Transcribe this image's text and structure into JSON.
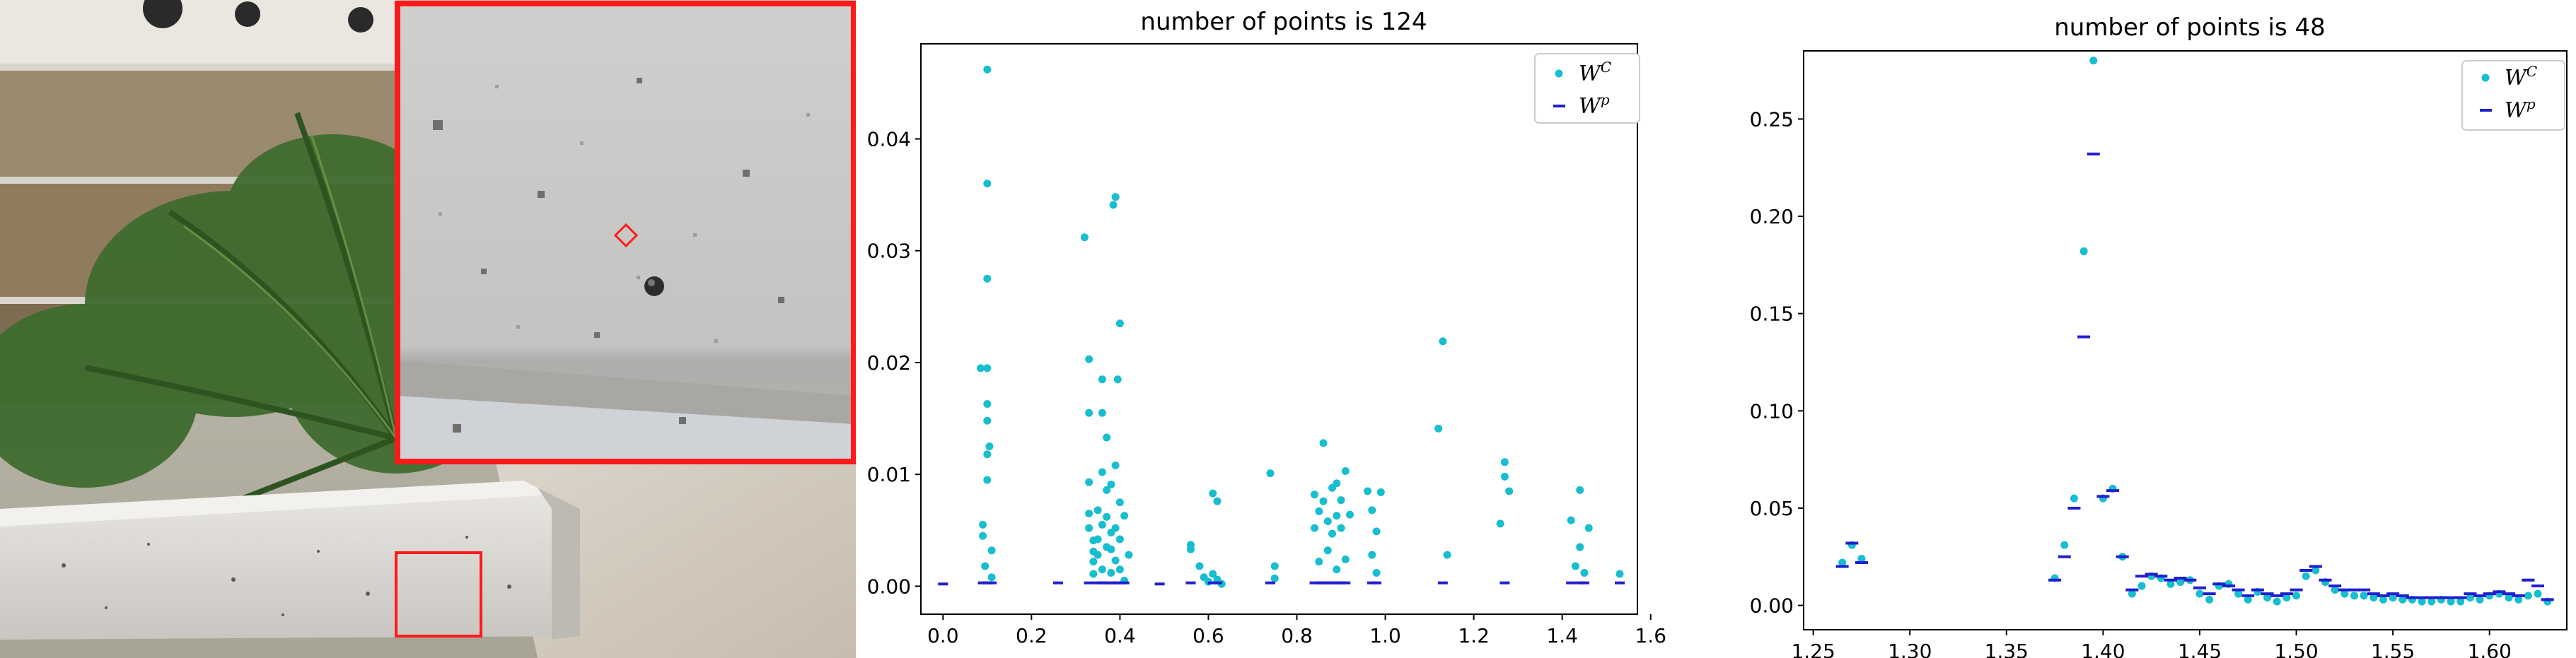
{
  "chart_data": [
    {
      "type": "scatter",
      "title": "number of points is 124",
      "xlim": [
        -0.05,
        1.57
      ],
      "ylim": [
        -0.0025,
        0.0485
      ],
      "xticks": [
        0.0,
        0.2,
        0.4,
        0.6,
        0.8,
        1.0,
        1.2,
        1.4,
        1.6
      ],
      "xtick_labels": [
        "0.0",
        "0.2",
        "0.4",
        "0.6",
        "0.8",
        "1.0",
        "1.2",
        "1.4",
        "1.6"
      ],
      "yticks": [
        0.0,
        0.01,
        0.02,
        0.03,
        0.04
      ],
      "ytick_labels": [
        "0.00",
        "0.01",
        "0.02",
        "0.03",
        "0.04"
      ],
      "legend_position": "top-right",
      "grid": false,
      "series": [
        {
          "name": "W^C",
          "marker": "dot",
          "color": "#17becf",
          "points": [
            [
              0.085,
              0.0195
            ],
            [
              0.09,
              0.0055
            ],
            [
              0.09,
              0.0045
            ],
            [
              0.095,
              0.0018
            ],
            [
              0.1,
              0.0462
            ],
            [
              0.1,
              0.036
            ],
            [
              0.1,
              0.0275
            ],
            [
              0.1,
              0.0195
            ],
            [
              0.1,
              0.0163
            ],
            [
              0.1,
              0.0148
            ],
            [
              0.1,
              0.0118
            ],
            [
              0.1,
              0.0095
            ],
            [
              0.105,
              0.0125
            ],
            [
              0.11,
              0.0032
            ],
            [
              0.11,
              0.0008
            ],
            [
              0.32,
              0.0312
            ],
            [
              0.33,
              0.0203
            ],
            [
              0.33,
              0.0155
            ],
            [
              0.33,
              0.0093
            ],
            [
              0.33,
              0.0065
            ],
            [
              0.33,
              0.0052
            ],
            [
              0.34,
              0.0041
            ],
            [
              0.34,
              0.0031
            ],
            [
              0.34,
              0.0022
            ],
            [
              0.34,
              0.0011
            ],
            [
              0.35,
              0.0068
            ],
            [
              0.35,
              0.0042
            ],
            [
              0.35,
              0.0028
            ],
            [
              0.36,
              0.0185
            ],
            [
              0.36,
              0.0155
            ],
            [
              0.36,
              0.0102
            ],
            [
              0.36,
              0.0055
            ],
            [
              0.36,
              0.0015
            ],
            [
              0.37,
              0.0133
            ],
            [
              0.37,
              0.0086
            ],
            [
              0.37,
              0.0062
            ],
            [
              0.37,
              0.0035
            ],
            [
              0.38,
              0.0091
            ],
            [
              0.38,
              0.0048
            ],
            [
              0.38,
              0.0033
            ],
            [
              0.38,
              0.0012
            ],
            [
              0.385,
              0.0341
            ],
            [
              0.39,
              0.0348
            ],
            [
              0.39,
              0.0108
            ],
            [
              0.39,
              0.0052
            ],
            [
              0.39,
              0.0023
            ],
            [
              0.395,
              0.0185
            ],
            [
              0.4,
              0.0235
            ],
            [
              0.4,
              0.0075
            ],
            [
              0.4,
              0.0042
            ],
            [
              0.4,
              0.0015
            ],
            [
              0.41,
              0.0063
            ],
            [
              0.41,
              0.0005
            ],
            [
              0.42,
              0.0028
            ],
            [
              0.56,
              0.0033
            ],
            [
              0.56,
              0.0037
            ],
            [
              0.58,
              0.0018
            ],
            [
              0.59,
              0.0008
            ],
            [
              0.6,
              0.0004
            ],
            [
              0.61,
              0.0083
            ],
            [
              0.61,
              0.0011
            ],
            [
              0.62,
              0.0076
            ],
            [
              0.62,
              0.0006
            ],
            [
              0.63,
              0.0002
            ],
            [
              0.74,
              0.0101
            ],
            [
              0.75,
              0.0018
            ],
            [
              0.75,
              0.0007
            ],
            [
              0.84,
              0.0082
            ],
            [
              0.84,
              0.0052
            ],
            [
              0.85,
              0.0067
            ],
            [
              0.85,
              0.0022
            ],
            [
              0.86,
              0.0128
            ],
            [
              0.86,
              0.0076
            ],
            [
              0.87,
              0.0058
            ],
            [
              0.87,
              0.0032
            ],
            [
              0.88,
              0.0088
            ],
            [
              0.88,
              0.0047
            ],
            [
              0.89,
              0.0092
            ],
            [
              0.89,
              0.0063
            ],
            [
              0.89,
              0.0015
            ],
            [
              0.9,
              0.0077
            ],
            [
              0.9,
              0.0052
            ],
            [
              0.91,
              0.0103
            ],
            [
              0.91,
              0.0024
            ],
            [
              0.92,
              0.0064
            ],
            [
              0.96,
              0.0085
            ],
            [
              0.97,
              0.0068
            ],
            [
              0.97,
              0.0028
            ],
            [
              0.98,
              0.0049
            ],
            [
              0.98,
              0.0012
            ],
            [
              0.99,
              0.0084
            ],
            [
              1.12,
              0.0141
            ],
            [
              1.13,
              0.0219
            ],
            [
              1.14,
              0.0028
            ],
            [
              1.26,
              0.0056
            ],
            [
              1.27,
              0.0111
            ],
            [
              1.27,
              0.0098
            ],
            [
              1.28,
              0.0085
            ],
            [
              1.42,
              0.0059
            ],
            [
              1.43,
              0.0018
            ],
            [
              1.44,
              0.0086
            ],
            [
              1.44,
              0.0035
            ],
            [
              1.45,
              0.0012
            ],
            [
              1.46,
              0.0052
            ],
            [
              1.53,
              0.0011
            ]
          ]
        },
        {
          "name": "W^p",
          "marker": "hline",
          "color": "#1f1fcf",
          "points": [
            [
              0.0,
              0.0002
            ],
            [
              0.09,
              0.0003
            ],
            [
              0.1,
              0.0003
            ],
            [
              0.11,
              0.0003
            ],
            [
              0.26,
              0.0003
            ],
            [
              0.33,
              0.0003
            ],
            [
              0.35,
              0.0003
            ],
            [
              0.36,
              0.0003
            ],
            [
              0.37,
              0.0003
            ],
            [
              0.38,
              0.0003
            ],
            [
              0.39,
              0.0003
            ],
            [
              0.4,
              0.0003
            ],
            [
              0.41,
              0.0003
            ],
            [
              0.49,
              0.0002
            ],
            [
              0.56,
              0.0003
            ],
            [
              0.61,
              0.0003
            ],
            [
              0.62,
              0.0003
            ],
            [
              0.74,
              0.0003
            ],
            [
              0.84,
              0.0003
            ],
            [
              0.85,
              0.0003
            ],
            [
              0.86,
              0.0003
            ],
            [
              0.87,
              0.0003
            ],
            [
              0.88,
              0.0003
            ],
            [
              0.89,
              0.0003
            ],
            [
              0.9,
              0.0003
            ],
            [
              0.91,
              0.0003
            ],
            [
              0.97,
              0.0003
            ],
            [
              0.98,
              0.0003
            ],
            [
              1.13,
              0.0003
            ],
            [
              1.27,
              0.0003
            ],
            [
              1.42,
              0.0003
            ],
            [
              1.44,
              0.0003
            ],
            [
              1.45,
              0.0003
            ],
            [
              1.53,
              0.0003
            ]
          ]
        }
      ]
    },
    {
      "type": "scatter",
      "title": "number of points is 48",
      "xlim": [
        1.245,
        1.64
      ],
      "ylim": [
        -0.0125,
        0.285
      ],
      "xticks": [
        1.25,
        1.3,
        1.35,
        1.4,
        1.45,
        1.5,
        1.55,
        1.6
      ],
      "xtick_labels": [
        "1.25",
        "1.30",
        "1.35",
        "1.40",
        "1.45",
        "1.50",
        "1.55",
        "1.60"
      ],
      "yticks": [
        0.0,
        0.05,
        0.1,
        0.15,
        0.2,
        0.25
      ],
      "ytick_labels": [
        "0.00",
        "0.05",
        "0.10",
        "0.15",
        "0.20",
        "0.25"
      ],
      "legend_position": "top-right",
      "grid": false,
      "series": [
        {
          "name": "W^C",
          "marker": "dot",
          "color": "#17becf",
          "points": [
            [
              1.265,
              0.022
            ],
            [
              1.27,
              0.031
            ],
            [
              1.275,
              0.024
            ],
            [
              1.375,
              0.014
            ],
            [
              1.38,
              0.031
            ],
            [
              1.385,
              0.055
            ],
            [
              1.39,
              0.182
            ],
            [
              1.395,
              0.28
            ],
            [
              1.4,
              0.055
            ],
            [
              1.405,
              0.06
            ],
            [
              1.41,
              0.025
            ],
            [
              1.415,
              0.006
            ],
            [
              1.42,
              0.01
            ],
            [
              1.425,
              0.015
            ],
            [
              1.43,
              0.014
            ],
            [
              1.435,
              0.011
            ],
            [
              1.44,
              0.012
            ],
            [
              1.445,
              0.013
            ],
            [
              1.45,
              0.006
            ],
            [
              1.455,
              0.003
            ],
            [
              1.46,
              0.01
            ],
            [
              1.465,
              0.011
            ],
            [
              1.47,
              0.006
            ],
            [
              1.475,
              0.003
            ],
            [
              1.48,
              0.007
            ],
            [
              1.485,
              0.004
            ],
            [
              1.49,
              0.002
            ],
            [
              1.495,
              0.004
            ],
            [
              1.5,
              0.005
            ],
            [
              1.505,
              0.015
            ],
            [
              1.51,
              0.018
            ],
            [
              1.515,
              0.012
            ],
            [
              1.52,
              0.008
            ],
            [
              1.525,
              0.006
            ],
            [
              1.53,
              0.005
            ],
            [
              1.535,
              0.005
            ],
            [
              1.54,
              0.004
            ],
            [
              1.545,
              0.003
            ],
            [
              1.55,
              0.004
            ],
            [
              1.555,
              0.003
            ],
            [
              1.56,
              0.003
            ],
            [
              1.565,
              0.002
            ],
            [
              1.57,
              0.002
            ],
            [
              1.575,
              0.003
            ],
            [
              1.58,
              0.002
            ],
            [
              1.585,
              0.002
            ],
            [
              1.59,
              0.004
            ],
            [
              1.595,
              0.003
            ],
            [
              1.6,
              0.005
            ],
            [
              1.605,
              0.006
            ],
            [
              1.61,
              0.004
            ],
            [
              1.615,
              0.003
            ],
            [
              1.62,
              0.005
            ],
            [
              1.625,
              0.006
            ],
            [
              1.63,
              0.002
            ]
          ]
        },
        {
          "name": "W^p",
          "marker": "hline",
          "color": "#1f1fcf",
          "points": [
            [
              1.265,
              0.02
            ],
            [
              1.27,
              0.032
            ],
            [
              1.275,
              0.022
            ],
            [
              1.375,
              0.013
            ],
            [
              1.38,
              0.025
            ],
            [
              1.385,
              0.05
            ],
            [
              1.39,
              0.138
            ],
            [
              1.395,
              0.232
            ],
            [
              1.4,
              0.056
            ],
            [
              1.405,
              0.059
            ],
            [
              1.41,
              0.025
            ],
            [
              1.415,
              0.008
            ],
            [
              1.42,
              0.015
            ],
            [
              1.425,
              0.016
            ],
            [
              1.43,
              0.015
            ],
            [
              1.435,
              0.013
            ],
            [
              1.44,
              0.014
            ],
            [
              1.445,
              0.013
            ],
            [
              1.45,
              0.009
            ],
            [
              1.455,
              0.006
            ],
            [
              1.46,
              0.011
            ],
            [
              1.465,
              0.01
            ],
            [
              1.47,
              0.008
            ],
            [
              1.475,
              0.005
            ],
            [
              1.48,
              0.008
            ],
            [
              1.485,
              0.006
            ],
            [
              1.49,
              0.005
            ],
            [
              1.495,
              0.006
            ],
            [
              1.5,
              0.008
            ],
            [
              1.505,
              0.018
            ],
            [
              1.51,
              0.02
            ],
            [
              1.515,
              0.013
            ],
            [
              1.52,
              0.01
            ],
            [
              1.525,
              0.008
            ],
            [
              1.53,
              0.008
            ],
            [
              1.535,
              0.008
            ],
            [
              1.54,
              0.006
            ],
            [
              1.545,
              0.005
            ],
            [
              1.55,
              0.006
            ],
            [
              1.555,
              0.005
            ],
            [
              1.56,
              0.004
            ],
            [
              1.565,
              0.004
            ],
            [
              1.57,
              0.004
            ],
            [
              1.575,
              0.004
            ],
            [
              1.58,
              0.004
            ],
            [
              1.585,
              0.004
            ],
            [
              1.59,
              0.006
            ],
            [
              1.595,
              0.005
            ],
            [
              1.6,
              0.006
            ],
            [
              1.605,
              0.007
            ],
            [
              1.61,
              0.006
            ],
            [
              1.615,
              0.005
            ],
            [
              1.62,
              0.013
            ],
            [
              1.625,
              0.01
            ],
            [
              1.63,
              0.003
            ]
          ]
        }
      ]
    }
  ],
  "legend": {
    "wc_base": "W",
    "wc_sup": "C",
    "wp_base": "W",
    "wp_sup": "p"
  },
  "colors": {
    "wc": "#17becf",
    "wp": "#1f1fcf",
    "highlight": "#ff1a1a"
  }
}
